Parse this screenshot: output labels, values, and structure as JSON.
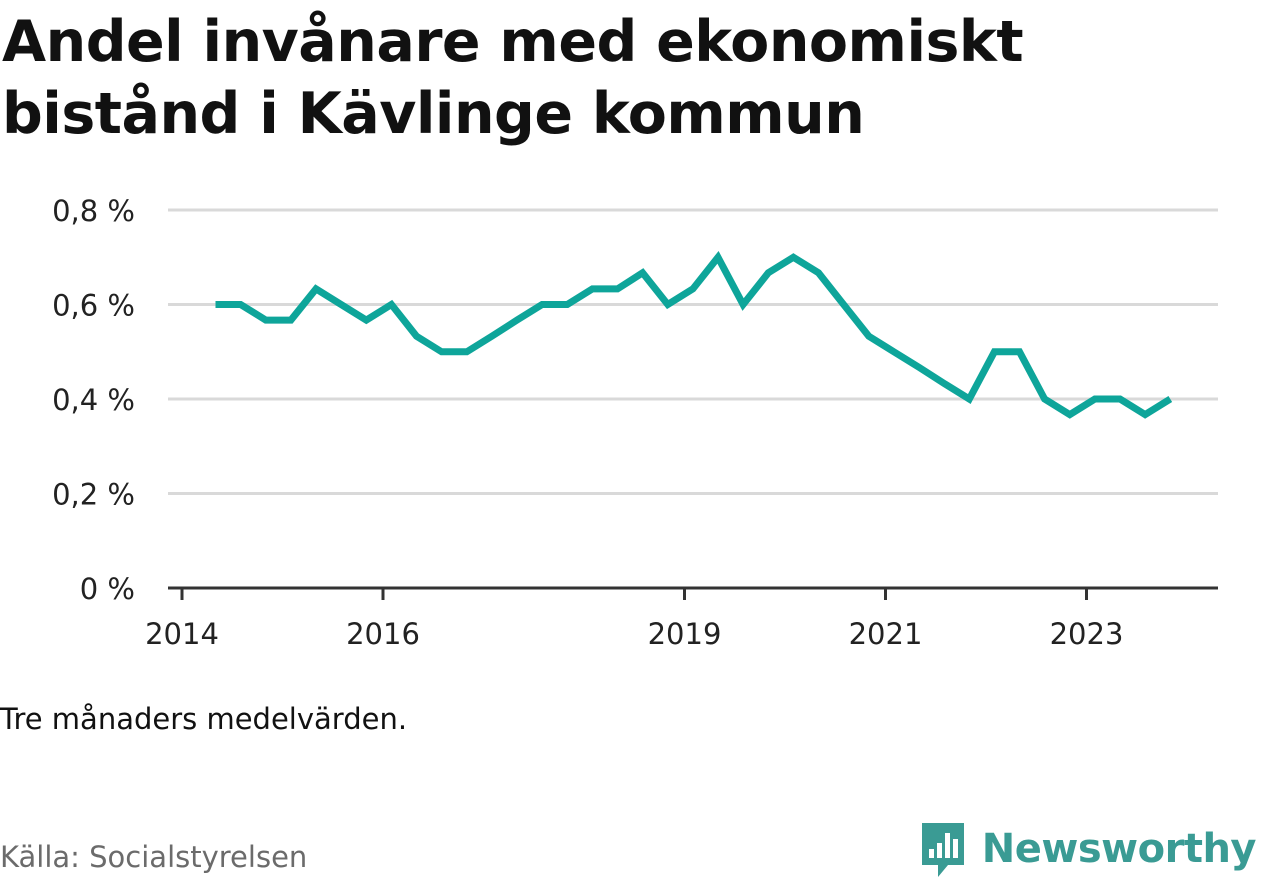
{
  "title": "Andel invånare med ekonomiskt bistånd i Kävlinge kommun",
  "note": "Tre månaders medelvärden.",
  "source": "Källa: Socialstyrelsen",
  "brand": {
    "name": "Newsworthy",
    "color": "#3a9b94",
    "icon": "newsworthy-logo-icon"
  },
  "chart_data": {
    "type": "line",
    "title": "Andel invånare med ekonomiskt bistånd i Kävlinge kommun",
    "xlabel": "",
    "ylabel": "",
    "ylim": [
      0,
      0.8
    ],
    "y_ticks": [
      0,
      0.2,
      0.4,
      0.6,
      0.8
    ],
    "y_tick_labels": [
      "0 %",
      "0,2 %",
      "0,4 %",
      "0,6 %",
      "0,8 %"
    ],
    "x_ticks": [
      2014,
      2016,
      2019,
      2021,
      2023
    ],
    "x_tick_labels": [
      "2014",
      "2016",
      "2019",
      "2021",
      "2023"
    ],
    "grid": true,
    "color": "#0ea59a",
    "series": [
      {
        "x": [
          "2014-05",
          "2014-08",
          "2014-11",
          "2015-02",
          "2015-05",
          "2015-08",
          "2015-11",
          "2016-02",
          "2016-05",
          "2016-08",
          "2016-11",
          "2017-02",
          "2017-05",
          "2017-08",
          "2017-11",
          "2018-02",
          "2018-05",
          "2018-08",
          "2018-11",
          "2019-02",
          "2019-05",
          "2019-08",
          "2019-11",
          "2020-02",
          "2020-05",
          "2020-08",
          "2020-11",
          "2021-02",
          "2021-05",
          "2021-08",
          "2021-11",
          "2022-02",
          "2022-05",
          "2022-08",
          "2022-11",
          "2023-02",
          "2023-05",
          "2023-08",
          "2023-11"
        ],
        "values": [
          0.6,
          0.6,
          0.567,
          0.567,
          0.633,
          0.6,
          0.567,
          0.6,
          0.533,
          0.5,
          0.5,
          0.533,
          0.567,
          0.6,
          0.6,
          0.633,
          0.633,
          0.667,
          0.6,
          0.633,
          0.7,
          0.6,
          0.667,
          0.7,
          0.667,
          0.6,
          0.533,
          0.5,
          0.467,
          0.433,
          0.4,
          0.5,
          0.5,
          0.4,
          0.367,
          0.4,
          0.4,
          0.367,
          0.4
        ]
      }
    ]
  }
}
